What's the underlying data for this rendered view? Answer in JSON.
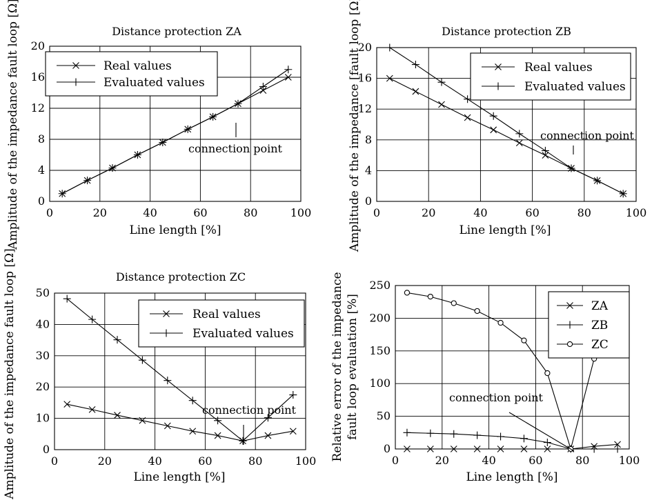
{
  "figure": {
    "charts": [
      {
        "id": "za",
        "title": "Distance protection ZA",
        "xlabel": "Line length [%]",
        "ylabel": "Amplitude of the impedance fault loop [Ω]",
        "xticks": [
          "0",
          "20",
          "40",
          "60",
          "80",
          "100"
        ],
        "yticks": [
          "0",
          "4",
          "8",
          "12",
          "16",
          "20"
        ],
        "legend": [
          "Real values",
          "Evaluated values"
        ],
        "annotation": "connection point"
      },
      {
        "id": "zb",
        "title": "Distance protection ZB",
        "xlabel": "Line length [%]",
        "ylabel": "Amplitude of the impedance [fault loop [Ω]",
        "xticks": [
          "0",
          "20",
          "40",
          "60",
          "80",
          "100"
        ],
        "yticks": [
          "0",
          "4",
          "8",
          "12",
          "16",
          "20"
        ],
        "legend": [
          "Real values",
          "Evaluated values"
        ],
        "annotation": "connection point"
      },
      {
        "id": "zc",
        "title": "Distance protection ZC",
        "xlabel": "Line length [%]",
        "ylabel": "Amplitude of the impedance fault loop [Ω]",
        "xticks": [
          "0",
          "20",
          "40",
          "60",
          "80",
          "100"
        ],
        "yticks": [
          "0",
          "10",
          "20",
          "30",
          "40",
          "50"
        ],
        "legend": [
          "Real values",
          "Evaluated values"
        ],
        "annotation": "connection point"
      },
      {
        "id": "err",
        "title": "",
        "xlabel": "Line length [%]",
        "ylabel_line1": "Relative error of the impedance",
        "ylabel_line2": "fault loop evaluation [%]",
        "xticks": [
          "0",
          "20",
          "40",
          "60",
          "80",
          "100"
        ],
        "yticks": [
          "0",
          "50",
          "100",
          "150",
          "200",
          "250"
        ],
        "legend": [
          "ZA",
          "ZB",
          "ZC"
        ],
        "annotation": "connection point"
      }
    ]
  },
  "chart_data": [
    {
      "type": "line",
      "title": "Distance protection ZA",
      "xlabel": "Line length [%]",
      "ylabel": "Amplitude of the impedance fault loop [Ω]",
      "xlim": [
        0,
        100
      ],
      "ylim": [
        0,
        20
      ],
      "grid": true,
      "legend_position": "top-left",
      "x": [
        5,
        15,
        25,
        35,
        45,
        55,
        65,
        75,
        85,
        95
      ],
      "series": [
        {
          "name": "Real values",
          "marker": "x",
          "values": [
            1,
            2.7,
            4.3,
            6,
            7.6,
            9.3,
            10.9,
            12.6,
            14.3,
            16
          ]
        },
        {
          "name": "Evaluated values",
          "marker": "+",
          "values": [
            1,
            2.7,
            4.3,
            6,
            7.6,
            9.3,
            10.9,
            12.6,
            14.8,
            17
          ]
        }
      ],
      "annotations": [
        {
          "text": "connection point",
          "x": 75
        }
      ]
    },
    {
      "type": "line",
      "title": "Distance protection ZB",
      "xlabel": "Line length [%]",
      "ylabel": "Amplitude of the impedance [fault loop [Ω]",
      "xlim": [
        0,
        100
      ],
      "ylim": [
        0,
        20
      ],
      "grid": true,
      "legend_position": "top-right",
      "x": [
        5,
        15,
        25,
        35,
        45,
        55,
        65,
        75,
        85,
        95
      ],
      "series": [
        {
          "name": "Real values",
          "marker": "x",
          "values": [
            16,
            14.3,
            12.6,
            10.9,
            9.3,
            7.6,
            6,
            4.3,
            2.7,
            1
          ]
        },
        {
          "name": "Evaluated values",
          "marker": "+",
          "values": [
            20,
            17.8,
            15.5,
            13.3,
            11.1,
            8.8,
            6.6,
            4.3,
            2.7,
            1
          ]
        }
      ],
      "annotations": [
        {
          "text": "connection point",
          "x": 75
        }
      ]
    },
    {
      "type": "line",
      "title": "Distance protection ZC",
      "xlabel": "Line length [%]",
      "ylabel": "Amplitude of the impedance fault loop [Ω]",
      "xlim": [
        0,
        100
      ],
      "ylim": [
        0,
        50
      ],
      "grid": true,
      "legend_position": "top-right",
      "x": [
        5,
        15,
        25,
        35,
        45,
        55,
        65,
        75,
        85,
        95
      ],
      "series": [
        {
          "name": "Real values",
          "marker": "x",
          "values": [
            14.5,
            12.8,
            11,
            9.3,
            7.6,
            5.9,
            4.5,
            2.8,
            4.5,
            5.9
          ]
        },
        {
          "name": "Evaluated values",
          "marker": "+",
          "values": [
            48.2,
            41.6,
            35.1,
            28.6,
            22.1,
            15.7,
            9.3,
            2.8,
            10.2,
            17.5
          ]
        }
      ],
      "annotations": [
        {
          "text": "connection point",
          "x": 75
        }
      ]
    },
    {
      "type": "line",
      "title": "",
      "xlabel": "Line length [%]",
      "ylabel": "Relative error of the impedance fault loop evaluation [%]",
      "xlim": [
        0,
        100
      ],
      "ylim": [
        0,
        250
      ],
      "grid": true,
      "legend_position": "top-right",
      "x": [
        5,
        15,
        25,
        35,
        45,
        55,
        65,
        75,
        85,
        95
      ],
      "series": [
        {
          "name": "ZA",
          "marker": "x",
          "values": [
            0,
            0,
            0,
            0,
            0,
            0,
            0,
            0,
            4,
            7
          ]
        },
        {
          "name": "ZB",
          "marker": "+",
          "values": [
            25,
            24,
            23,
            21,
            19,
            16,
            10,
            0,
            0,
            0
          ]
        },
        {
          "name": "ZC",
          "marker": "o",
          "values": [
            239,
            233,
            223,
            211,
            193,
            166,
            116,
            0,
            138,
            200
          ]
        }
      ],
      "annotations": [
        {
          "text": "connection point",
          "x": 75
        }
      ]
    }
  ]
}
